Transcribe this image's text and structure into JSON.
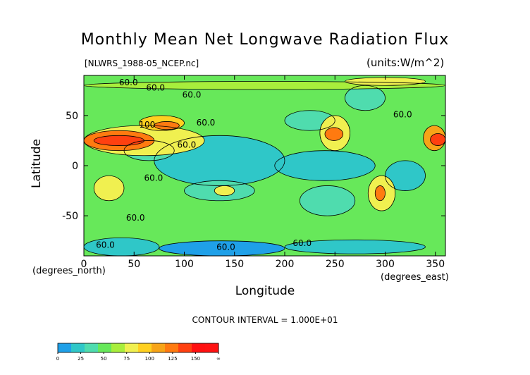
{
  "chart_data": {
    "type": "heatmap",
    "title": "Monthly Mean Net Longwave Radiation Flux",
    "subtitle_left": "[NLWRS_1988-05_NCEP.nc]",
    "subtitle_right": "(units:W/m^2)",
    "xlabel": "Longitude",
    "ylabel": "Latitude",
    "x_unit": "(degrees_east)",
    "y_unit": "(degrees_north)",
    "xlim": [
      0,
      360
    ],
    "ylim": [
      -90,
      90
    ],
    "x_ticks": [
      0,
      50,
      100,
      150,
      200,
      250,
      300,
      350
    ],
    "y_ticks": [
      50,
      0,
      -50
    ],
    "contour_interval_text": "CONTOUR INTERVAL = 1.000E+01",
    "contour_labels": [
      "60.0",
      "60.0",
      "60.0",
      "60.0",
      "100",
      "60.0",
      "60.0",
      "60.0",
      "60.0",
      "60.0",
      "60.0",
      "60.0"
    ],
    "colorbar": {
      "tick_labels": [
        "0",
        "25",
        "50",
        "75",
        "100",
        "125",
        "150",
        "∞"
      ],
      "colors": [
        "#1fa0e8",
        "#2fc7c8",
        "#4fdcae",
        "#67e85a",
        "#a8ee3c",
        "#f0f050",
        "#ffd020",
        "#f7a418",
        "#ff7a10",
        "#ff4010",
        "#ff1010",
        "#ff1212"
      ]
    },
    "regions": [
      {
        "lon": [
          0,
          360
        ],
        "lat": [
          -90,
          90
        ],
        "level": 3
      },
      {
        "lon": [
          70,
          200
        ],
        "lat": [
          -20,
          30
        ],
        "level": 1
      },
      {
        "lon": [
          190,
          290
        ],
        "lat": [
          -15,
          15
        ],
        "level": 1
      },
      {
        "lon": [
          100,
          170
        ],
        "lat": [
          -35,
          -15
        ],
        "level": 2
      },
      {
        "lon": [
          215,
          270
        ],
        "lat": [
          -50,
          -20
        ],
        "level": 2
      },
      {
        "lon": [
          300,
          340
        ],
        "lat": [
          -25,
          5
        ],
        "level": 1
      },
      {
        "lon": [
          40,
          90
        ],
        "lat": [
          5,
          25
        ],
        "level": 2
      },
      {
        "lon": [
          260,
          300
        ],
        "lat": [
          55,
          80
        ],
        "level": 2
      },
      {
        "lon": [
          200,
          250
        ],
        "lat": [
          35,
          55
        ],
        "level": 2
      },
      {
        "lon": [
          0,
          75
        ],
        "lat": [
          -90,
          -72
        ],
        "level": 1
      },
      {
        "lon": [
          75,
          200
        ],
        "lat": [
          -90,
          -75
        ],
        "level": 0
      },
      {
        "lon": [
          200,
          340
        ],
        "lat": [
          -88,
          -74
        ],
        "level": 1
      },
      {
        "lon": [
          0,
          120
        ],
        "lat": [
          10,
          40
        ],
        "level": 5
      },
      {
        "lon": [
          0,
          70
        ],
        "lat": [
          15,
          35
        ],
        "level": 8
      },
      {
        "lon": [
          10,
          60
        ],
        "lat": [
          20,
          30
        ],
        "level": 9
      },
      {
        "lon": [
          55,
          100
        ],
        "lat": [
          35,
          50
        ],
        "level": 6
      },
      {
        "lon": [
          70,
          95
        ],
        "lat": [
          36,
          44
        ],
        "level": 8
      },
      {
        "lon": [
          235,
          265
        ],
        "lat": [
          15,
          50
        ],
        "level": 5
      },
      {
        "lon": [
          240,
          258
        ],
        "lat": [
          25,
          38
        ],
        "level": 8
      },
      {
        "lon": [
          338,
          360
        ],
        "lat": [
          15,
          40
        ],
        "level": 7
      },
      {
        "lon": [
          345,
          360
        ],
        "lat": [
          20,
          32
        ],
        "level": 9
      },
      {
        "lon": [
          283,
          310
        ],
        "lat": [
          -45,
          -10
        ],
        "level": 5
      },
      {
        "lon": [
          290,
          300
        ],
        "lat": [
          -35,
          -20
        ],
        "level": 8
      },
      {
        "lon": [
          10,
          40
        ],
        "lat": [
          -35,
          -10
        ],
        "level": 5
      },
      {
        "lon": [
          130,
          150
        ],
        "lat": [
          -30,
          -20
        ],
        "level": 5
      },
      {
        "lon": [
          0,
          360
        ],
        "lat": [
          76,
          84
        ],
        "level": 4
      },
      {
        "lon": [
          260,
          340
        ],
        "lat": [
          80,
          88
        ],
        "level": 5
      }
    ]
  }
}
